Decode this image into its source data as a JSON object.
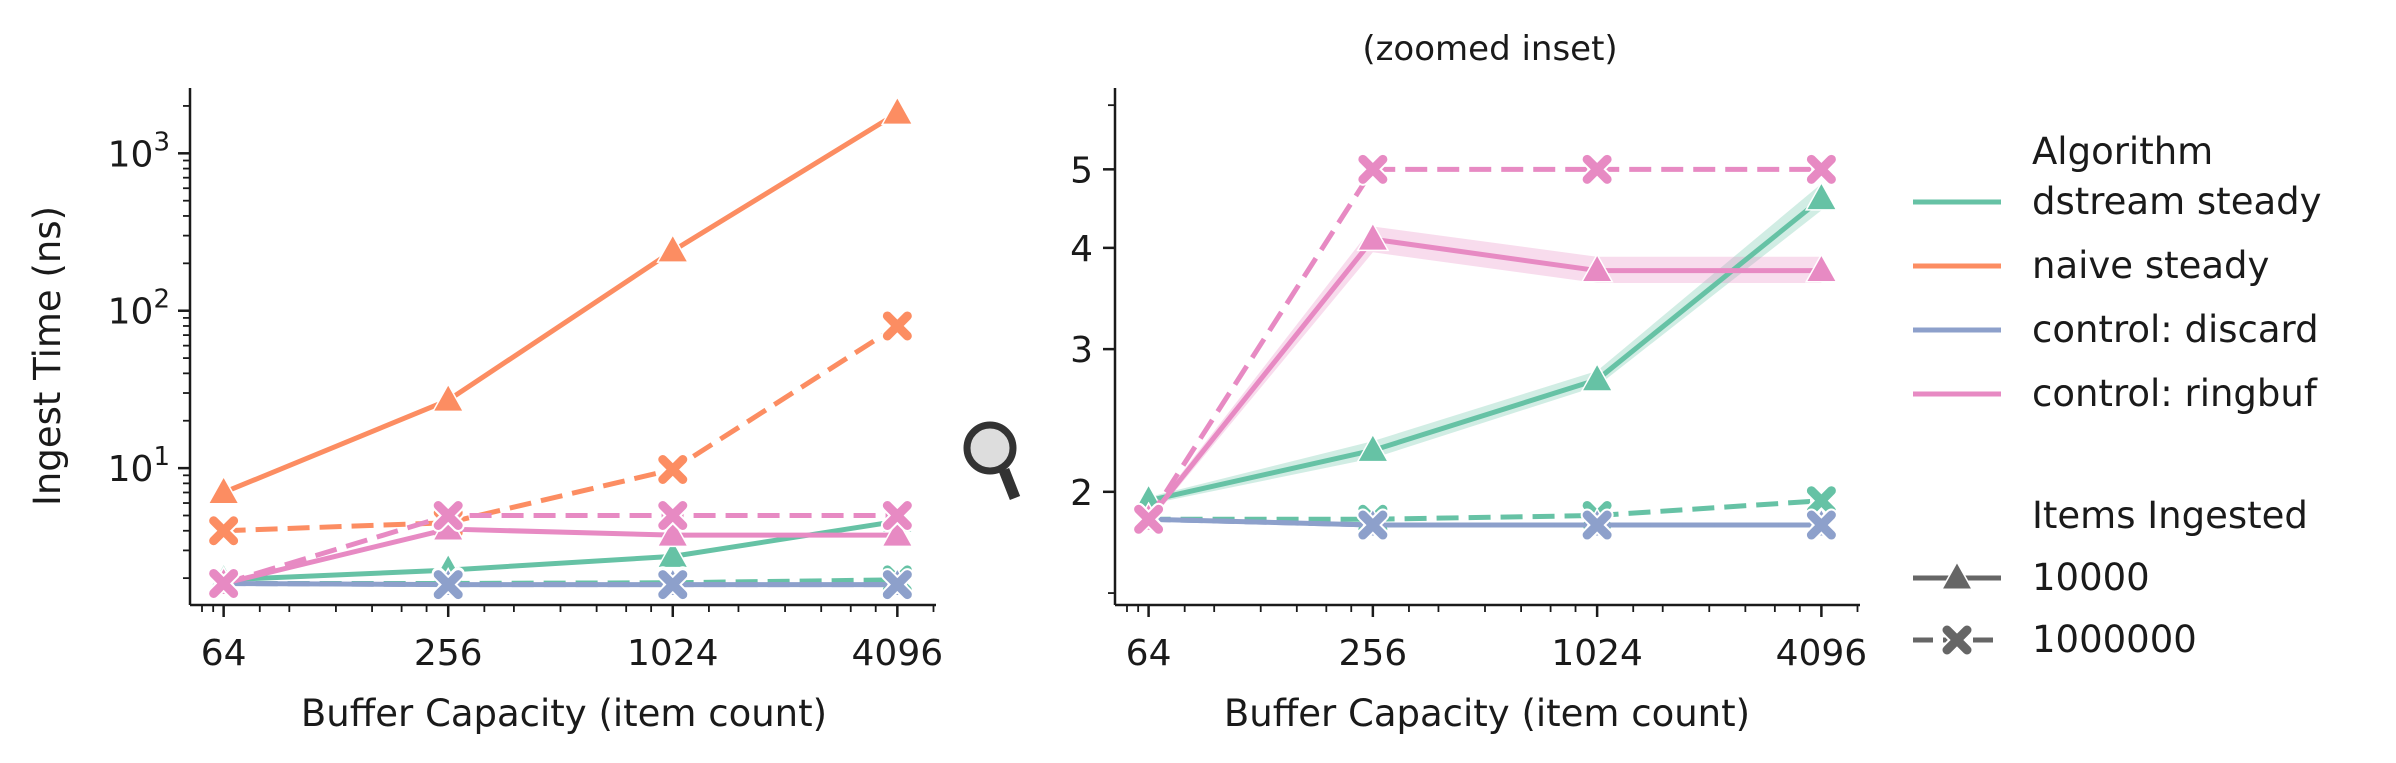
{
  "chart_data": [
    {
      "type": "line",
      "panel": "left",
      "title": "",
      "xlabel": "Buffer Capacity (item count)",
      "ylabel": "Ingest Time (ns)",
      "x_scale": "log2",
      "y_scale": "log10",
      "x": [
        64,
        256,
        1024,
        4096
      ],
      "x_tick_labels": [
        "64",
        "256",
        "1024",
        "4096"
      ],
      "y_tick_labels": [
        {
          "value": 10,
          "base": "10",
          "exp": "1"
        },
        {
          "value": 100,
          "base": "10",
          "exp": "2"
        },
        {
          "value": 1000,
          "base": "10",
          "exp": "3"
        }
      ],
      "xlim": [
        52,
        5200
      ],
      "ylim": [
        1.35,
        2600
      ],
      "grid": false,
      "series": [
        {
          "name": "dstream steady",
          "items": "10000",
          "values": [
            1.95,
            2.25,
            2.75,
            4.6
          ]
        },
        {
          "name": "dstream steady",
          "items": "1000000",
          "values": [
            1.85,
            1.85,
            1.87,
            1.95
          ]
        },
        {
          "name": "naive steady",
          "items": "10000",
          "values": [
            7.0,
            27,
            240,
            1800
          ]
        },
        {
          "name": "naive steady",
          "items": "1000000",
          "values": [
            4.0,
            4.5,
            9.8,
            80
          ]
        },
        {
          "name": "control: discard",
          "items": "10000",
          "values": [
            1.85,
            1.82,
            1.82,
            1.82
          ]
        },
        {
          "name": "control: discard",
          "items": "1000000",
          "values": [
            1.85,
            1.82,
            1.82,
            1.82
          ]
        },
        {
          "name": "control: ringbuf",
          "items": "10000",
          "values": [
            1.85,
            4.1,
            3.75,
            3.75
          ]
        },
        {
          "name": "control: ringbuf",
          "items": "1000000",
          "values": [
            1.85,
            5.0,
            5.0,
            5.0
          ]
        }
      ]
    },
    {
      "type": "line",
      "panel": "right",
      "title": "(zoomed inset)",
      "xlabel": "Buffer Capacity (item count)",
      "ylabel": "",
      "x_scale": "log2",
      "y_scale": "log10",
      "x": [
        64,
        256,
        1024,
        4096
      ],
      "x_tick_labels": [
        "64",
        "256",
        "1024",
        "4096"
      ],
      "y_tick_labels": [
        {
          "value": 2,
          "label": "2"
        },
        {
          "value": 3,
          "label": "3"
        },
        {
          "value": 4,
          "label": "4"
        },
        {
          "value": 5,
          "label": "5"
        }
      ],
      "xlim": [
        52,
        5200
      ],
      "ylim": [
        1.45,
        6.3
      ],
      "grid": false,
      "series": [
        {
          "name": "dstream steady",
          "items": "10000",
          "values": [
            1.95,
            2.25,
            2.75,
            4.6
          ],
          "band": [
            [
              1.93,
              1.97
            ],
            [
              2.2,
              2.31
            ],
            [
              2.7,
              2.82
            ],
            [
              4.45,
              4.8
            ]
          ]
        },
        {
          "name": "dstream steady",
          "items": "1000000",
          "values": [
            1.85,
            1.85,
            1.87,
            1.95
          ]
        },
        {
          "name": "control: discard",
          "items": "10000",
          "values": [
            1.85,
            1.82,
            1.82,
            1.82
          ]
        },
        {
          "name": "control: discard",
          "items": "1000000",
          "values": [
            1.85,
            1.82,
            1.82,
            1.82
          ]
        },
        {
          "name": "control: ringbuf",
          "items": "10000",
          "values": [
            1.85,
            4.1,
            3.75,
            3.75
          ],
          "band": [
            [
              1.83,
              1.87
            ],
            [
              3.95,
              4.25
            ],
            [
              3.62,
              3.9
            ],
            [
              3.62,
              3.9
            ]
          ]
        },
        {
          "name": "control: ringbuf",
          "items": "1000000",
          "values": [
            1.85,
            5.0,
            5.0,
            5.0
          ]
        }
      ]
    }
  ],
  "colors": {
    "dstream steady": "#66c2a5",
    "naive steady": "#fc8d62",
    "control: discard": "#8da0cb",
    "control: ringbuf": "#e78ac3",
    "legend_marker": "#666666"
  },
  "legend": {
    "placement": "right",
    "algorithm_title": "Algorithm",
    "algorithm_entries": [
      "dstream steady",
      "naive steady",
      "control: discard",
      "control: ringbuf"
    ],
    "items_title": "Items Ingested",
    "items_entries": [
      {
        "label": "10000",
        "marker": "triangle",
        "dash": "solid"
      },
      {
        "label": "1000000",
        "marker": "x",
        "dash": "dashed"
      }
    ]
  },
  "icons": {
    "zoom": "magnifier-icon"
  }
}
